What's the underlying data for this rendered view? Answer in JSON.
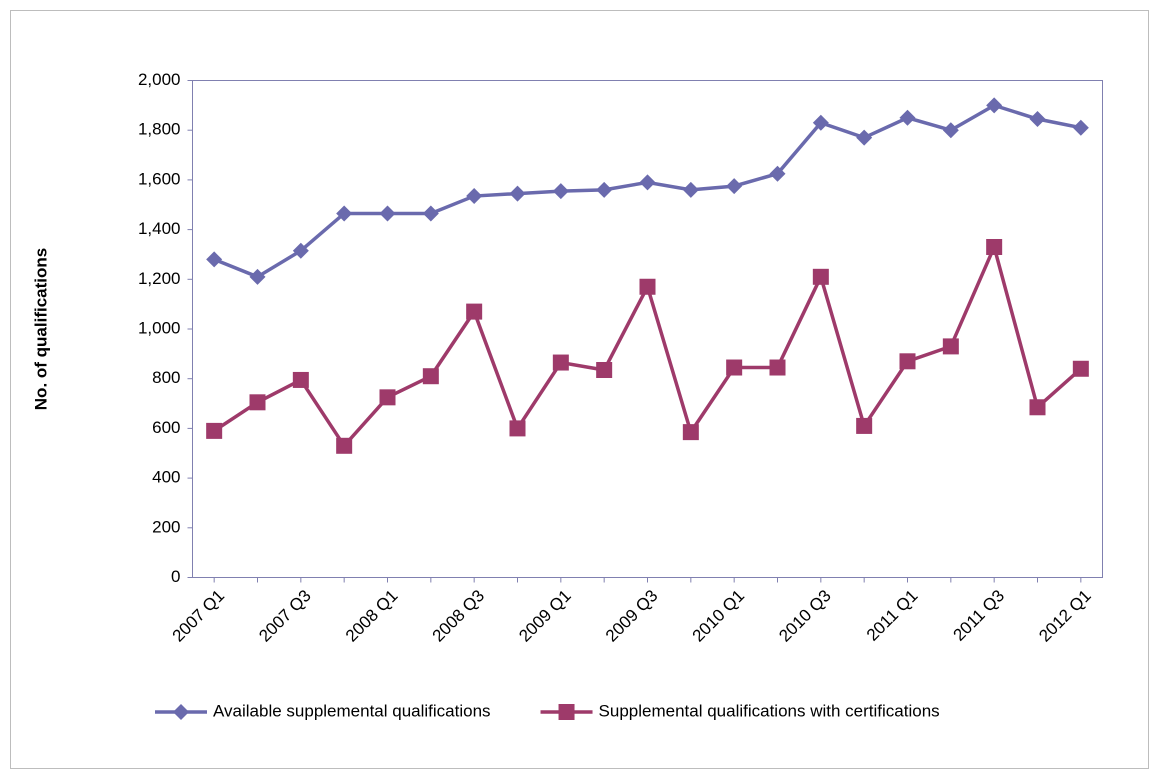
{
  "chart_data": {
    "type": "line",
    "y_label": "No. of qualifications",
    "categories": [
      "2007 Q1",
      null,
      "2007 Q3",
      null,
      "2008 Q1",
      null,
      "2008 Q3",
      null,
      "2009 Q1",
      null,
      "2009 Q3",
      null,
      "2010 Q1",
      null,
      "2010 Q3",
      null,
      "2011 Q1",
      null,
      "2011 Q3",
      null,
      "2012 Q1"
    ],
    "series": [
      {
        "name": "Available supplemental qualifications",
        "color": "#6a6aad",
        "marker": "diamond",
        "values": [
          1280,
          1210,
          1315,
          1465,
          1465,
          1465,
          1535,
          1545,
          1555,
          1560,
          1590,
          1560,
          1575,
          1625,
          1830,
          1770,
          1850,
          1800,
          1900,
          1845,
          1810
        ]
      },
      {
        "name": "Supplemental qualifications with certifications",
        "color": "#9e3a6a",
        "marker": "square",
        "values": [
          590,
          705,
          795,
          530,
          725,
          810,
          1070,
          600,
          865,
          835,
          1170,
          585,
          845,
          845,
          1210,
          610,
          870,
          930,
          1330,
          685,
          840
        ]
      }
    ],
    "ylim": [
      0,
      2000
    ],
    "yticks": [
      0,
      200,
      400,
      600,
      800,
      {
        "value": 1000,
        "label": "1,000"
      },
      {
        "value": 1200,
        "label": "1,200"
      },
      {
        "value": 1400,
        "label": "1,400"
      },
      {
        "value": 1600,
        "label": "1,600"
      },
      {
        "value": 1800,
        "label": "1,800"
      },
      {
        "value": 2000,
        "label": "2,000"
      }
    ],
    "legend": "bottom"
  }
}
